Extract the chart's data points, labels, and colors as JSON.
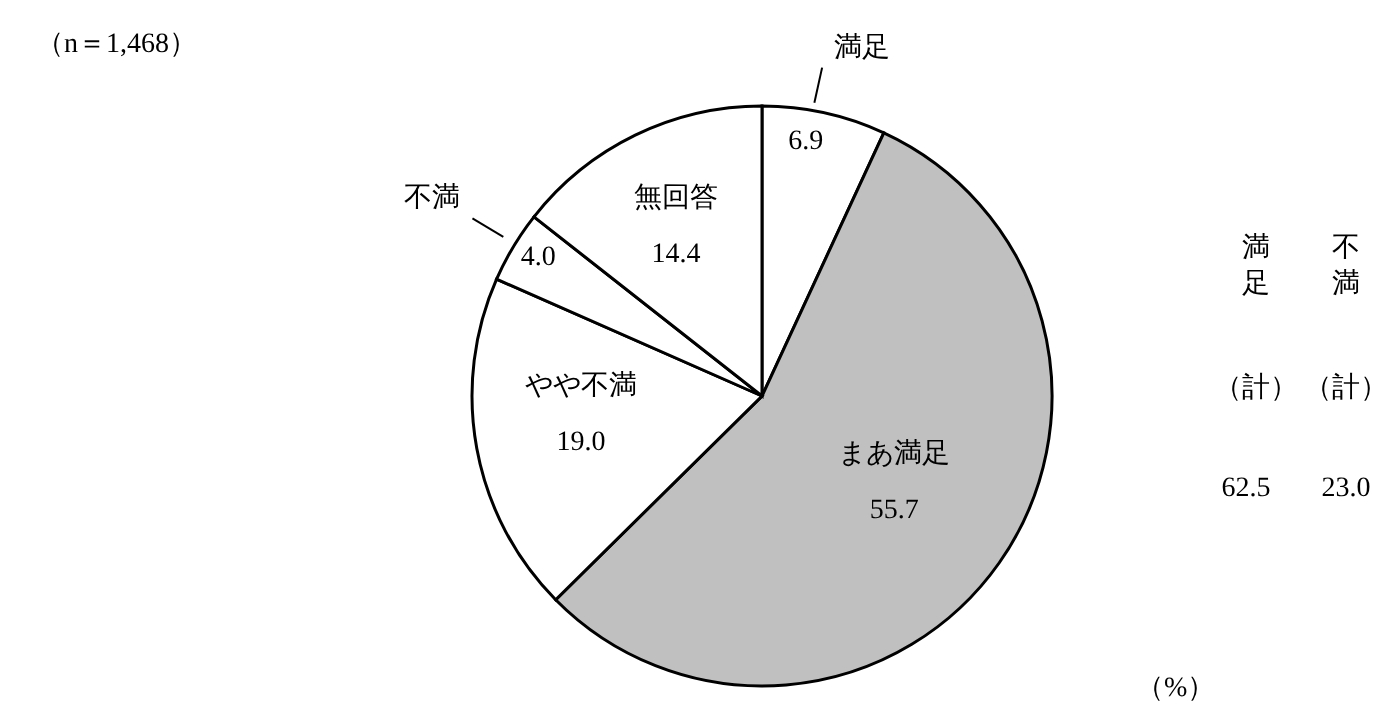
{
  "chart_data": {
    "type": "pie",
    "categories": [
      "満足",
      "まあ満足",
      "やや不満",
      "不満",
      "無回答"
    ],
    "values": [
      6.9,
      55.7,
      19.0,
      4.0,
      14.4
    ],
    "value_labels": [
      "6.9",
      "55.7",
      "19.0",
      "4.0",
      "14.4"
    ],
    "colors": [
      "#ffffff",
      "#c0c0c0",
      "#ffffff",
      "#ffffff",
      "#ffffff"
    ],
    "annotations": [
      "（n＝1,468）",
      "（%）",
      "満足",
      "不満",
      "（計）",
      "（計）",
      "62.5",
      "23.0"
    ]
  }
}
